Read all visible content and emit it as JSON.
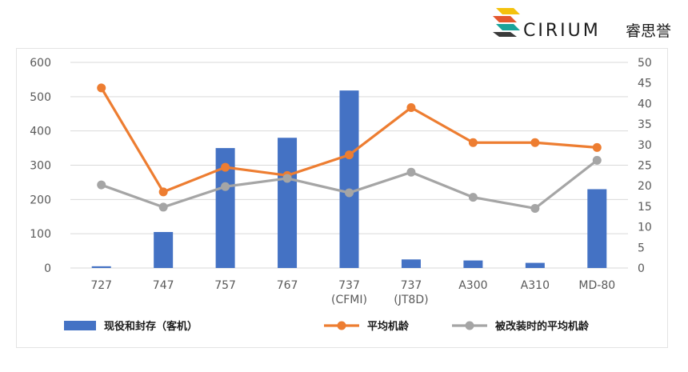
{
  "logo": {
    "text": "CIRIUM",
    "cn_text": "睿思誉",
    "colors": [
      "#f4c20d",
      "#e4572e",
      "#1aa39a",
      "#3a3a3a"
    ]
  },
  "chart_data": {
    "type": "bar",
    "categories": [
      "727",
      "747",
      "757",
      "767",
      "737\n(CFMI)",
      "737\n(JT8D)",
      "A300",
      "A310",
      "MD-80"
    ],
    "y_left": {
      "min": 0,
      "max": 600,
      "ticks": [
        0,
        100,
        200,
        300,
        400,
        500,
        600
      ]
    },
    "y_right": {
      "min": 0,
      "max": 50,
      "ticks": [
        0,
        5,
        10,
        15,
        20,
        25,
        30,
        35,
        40,
        45,
        50
      ]
    },
    "series": [
      {
        "name": "现役和封存（客机）",
        "type": "bar",
        "axis": "left",
        "color": "#4472c4",
        "values": [
          5,
          105,
          350,
          380,
          518,
          25,
          22,
          15,
          230
        ]
      },
      {
        "name": "平均机龄",
        "type": "line",
        "axis": "right",
        "color": "#ed7d31",
        "values": [
          43.8,
          18.5,
          24.5,
          22.5,
          27.5,
          39.0,
          30.5,
          30.5,
          29.3
        ]
      },
      {
        "name": "被改装时的平均机龄",
        "type": "line",
        "axis": "right",
        "color": "#a5a5a5",
        "values": [
          20.2,
          14.8,
          19.8,
          21.8,
          18.3,
          23.3,
          17.2,
          14.5,
          26.2
        ]
      }
    ],
    "legend_position": "bottom",
    "grid": true
  }
}
